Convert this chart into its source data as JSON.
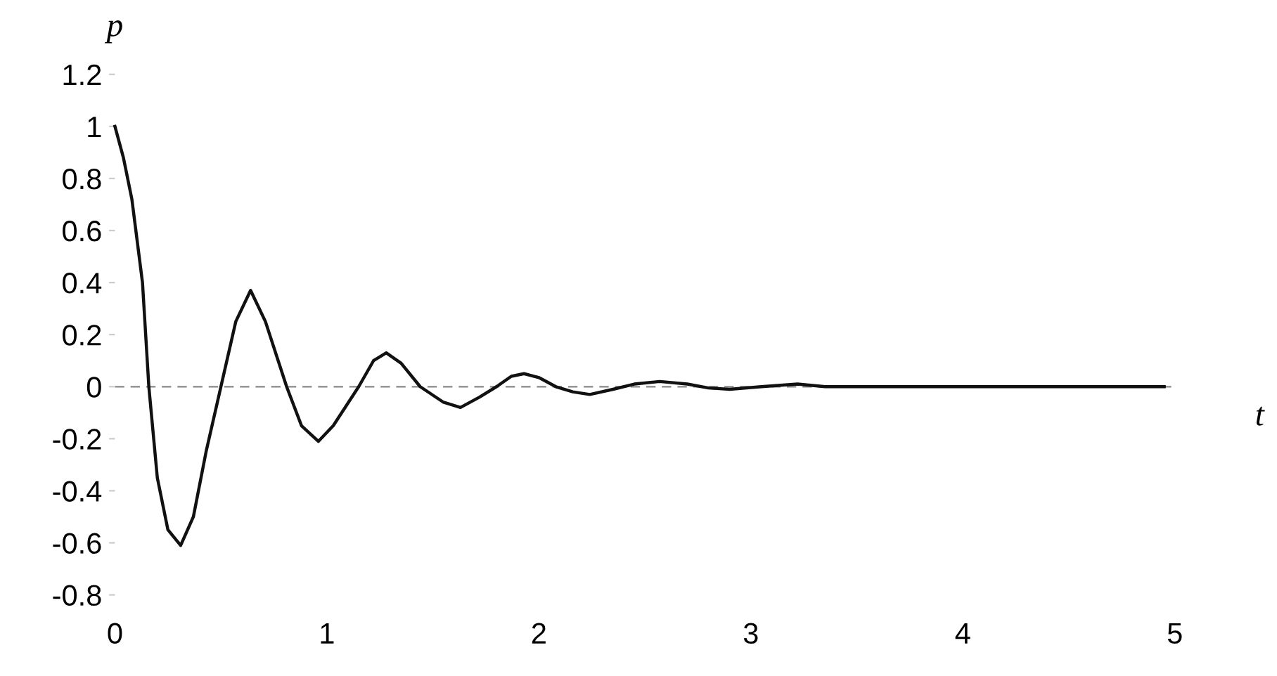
{
  "chart_data": {
    "type": "line",
    "xlabel": "t",
    "ylabel": "p",
    "x": [
      0,
      0.04,
      0.08,
      0.13,
      0.16,
      0.2,
      0.25,
      0.31,
      0.37,
      0.43,
      0.5,
      0.57,
      0.64,
      0.71,
      0.81,
      0.88,
      0.96,
      1.03,
      1.15,
      1.22,
      1.28,
      1.35,
      1.44,
      1.55,
      1.63,
      1.72,
      1.8,
      1.87,
      1.93,
      2.0,
      2.08,
      2.16,
      2.24,
      2.35,
      2.45,
      2.57,
      2.7,
      2.8,
      2.9,
      3.05,
      3.22,
      3.35,
      3.5,
      4.0,
      4.5,
      4.95
    ],
    "series": [
      {
        "color": "#111111",
        "values": [
          1.0,
          0.88,
          0.72,
          0.4,
          0.0,
          -0.35,
          -0.55,
          -0.61,
          -0.5,
          -0.25,
          0.0,
          0.25,
          0.37,
          0.25,
          0.0,
          -0.15,
          -0.21,
          -0.15,
          0.0,
          0.1,
          0.13,
          0.09,
          0.0,
          -0.06,
          -0.08,
          -0.04,
          0.0,
          0.04,
          0.05,
          0.035,
          0.0,
          -0.02,
          -0.03,
          -0.01,
          0.01,
          0.02,
          0.01,
          -0.005,
          -0.01,
          0.0,
          0.01,
          0.0,
          0.0,
          0.0,
          0.0,
          0.0
        ]
      }
    ],
    "xlim": [
      0,
      5
    ],
    "ylim": [
      -0.8,
      1.2
    ],
    "xticks": [
      0,
      1,
      2,
      3,
      4,
      5
    ],
    "yticks": [
      -0.8,
      -0.6,
      -0.4,
      -0.2,
      0,
      0.2,
      0.4,
      0.6,
      0.8,
      1,
      1.2
    ],
    "ref_lines": [
      {
        "axis": "y",
        "value": 0,
        "color": "#888888",
        "line_style": "dashed"
      }
    ],
    "grid": false,
    "legend": false
  }
}
